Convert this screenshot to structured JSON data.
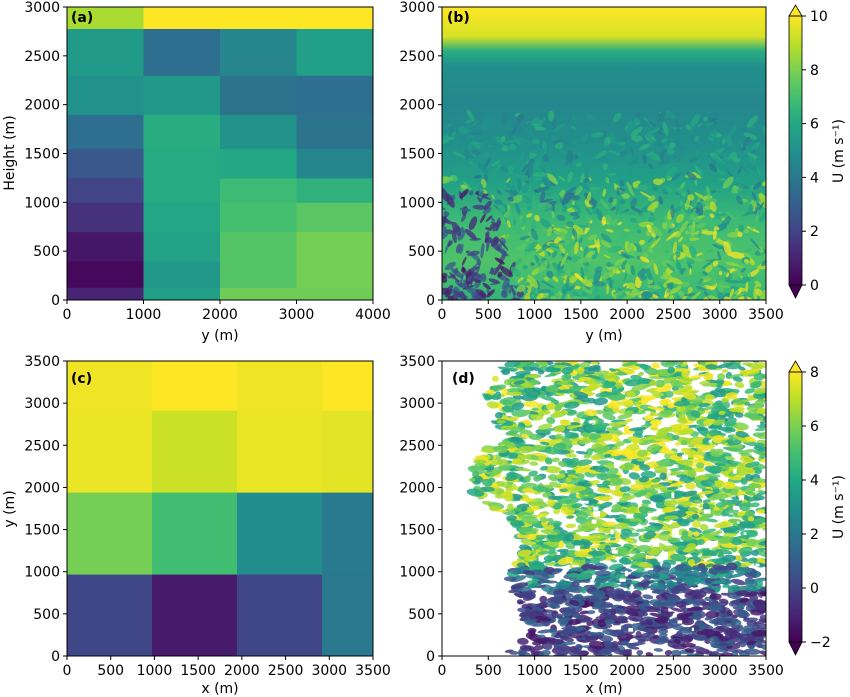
{
  "colors": {
    "viridis": [
      "#440154",
      "#482475",
      "#414487",
      "#355f8d",
      "#2a788e",
      "#21918c",
      "#22a884",
      "#44bf70",
      "#7ad151",
      "#bddf26",
      "#fde725"
    ]
  },
  "chart_data": [
    {
      "id": "a",
      "type": "heatmap",
      "panel_label": "(a)",
      "xlabel": "y (m)",
      "ylabel": "Height (m)",
      "xlim": [
        0,
        4000
      ],
      "ylim": [
        0,
        3000
      ],
      "xticks": [
        "0",
        "1000",
        "2000",
        "3000",
        "4000"
      ],
      "yticks": [
        "0",
        "500",
        "1000",
        "1500",
        "2000",
        "2500",
        "3000"
      ],
      "vmin": 0,
      "vmax": 10,
      "columns": [
        {
          "x0": 0,
          "x1": 1000,
          "cells": [
            {
              "z0": 0,
              "z1": 130,
              "v": 1.0
            },
            {
              "z0": 130,
              "z1": 400,
              "v": 0.2
            },
            {
              "z0": 400,
              "z1": 700,
              "v": 0.6
            },
            {
              "z0": 700,
              "z1": 1000,
              "v": 1.4
            },
            {
              "z0": 1000,
              "z1": 1250,
              "v": 2.0
            },
            {
              "z0": 1250,
              "z1": 1550,
              "v": 2.7
            },
            {
              "z0": 1550,
              "z1": 1900,
              "v": 3.6
            },
            {
              "z0": 1900,
              "z1": 2300,
              "v": 5.0
            },
            {
              "z0": 2300,
              "z1": 2780,
              "v": 5.4
            },
            {
              "z0": 2780,
              "z1": 3000,
              "v": 8.7
            }
          ]
        },
        {
          "x0": 1000,
          "x1": 2000,
          "cells": [
            {
              "z0": 0,
              "z1": 130,
              "v": 5.6
            },
            {
              "z0": 130,
              "z1": 400,
              "v": 5.3
            },
            {
              "z0": 400,
              "z1": 700,
              "v": 5.7
            },
            {
              "z0": 700,
              "z1": 1000,
              "v": 5.9
            },
            {
              "z0": 1000,
              "z1": 1550,
              "v": 6.1
            },
            {
              "z0": 1550,
              "z1": 1900,
              "v": 6.2
            },
            {
              "z0": 1900,
              "z1": 2300,
              "v": 5.3
            },
            {
              "z0": 2300,
              "z1": 2780,
              "v": 3.6
            },
            {
              "z0": 2780,
              "z1": 3000,
              "v": 10
            }
          ]
        },
        {
          "x0": 2000,
          "x1": 3000,
          "cells": [
            {
              "z0": 0,
              "z1": 130,
              "v": 7.8
            },
            {
              "z0": 130,
              "z1": 700,
              "v": 7.3
            },
            {
              "z0": 700,
              "z1": 1000,
              "v": 7.0
            },
            {
              "z0": 1000,
              "z1": 1250,
              "v": 6.8
            },
            {
              "z0": 1250,
              "z1": 1550,
              "v": 6.0
            },
            {
              "z0": 1550,
              "z1": 1900,
              "v": 5.1
            },
            {
              "z0": 1900,
              "z1": 2300,
              "v": 3.8
            },
            {
              "z0": 2300,
              "z1": 2780,
              "v": 4.5
            },
            {
              "z0": 2780,
              "z1": 3000,
              "v": 10
            }
          ]
        },
        {
          "x0": 3000,
          "x1": 4000,
          "cells": [
            {
              "z0": 0,
              "z1": 130,
              "v": 7.8
            },
            {
              "z0": 130,
              "z1": 700,
              "v": 7.9
            },
            {
              "z0": 700,
              "z1": 1000,
              "v": 7.4
            },
            {
              "z0": 1000,
              "z1": 1250,
              "v": 6.4
            },
            {
              "z0": 1250,
              "z1": 1550,
              "v": 4.6
            },
            {
              "z0": 1550,
              "z1": 1900,
              "v": 3.8
            },
            {
              "z0": 1900,
              "z1": 2300,
              "v": 3.6
            },
            {
              "z0": 2300,
              "z1": 2780,
              "v": 5.6
            },
            {
              "z0": 2780,
              "z1": 3000,
              "v": 10
            }
          ]
        }
      ]
    },
    {
      "id": "b",
      "type": "heatmap",
      "panel_label": "(b)",
      "xlabel": "y (m)",
      "ylabel": "",
      "xlim": [
        0,
        3600
      ],
      "ylim": [
        0,
        3000
      ],
      "xticks": [
        "0",
        "500",
        "1000",
        "1500",
        "2000",
        "2500",
        "3000",
        "3500"
      ],
      "yticks": [
        "0",
        "500",
        "1000",
        "1500",
        "2000",
        "2500",
        "3000"
      ],
      "vmin": 0,
      "vmax": 10,
      "vertical_profile": [
        {
          "z": 0,
          "v": 6.5
        },
        {
          "z": 400,
          "v": 7.2
        },
        {
          "z": 800,
          "v": 6.8
        },
        {
          "z": 1200,
          "v": 5.7
        },
        {
          "z": 1600,
          "v": 4.9
        },
        {
          "z": 2000,
          "v": 4.6
        },
        {
          "z": 2400,
          "v": 4.9
        },
        {
          "z": 2550,
          "v": 6.2
        },
        {
          "z": 2700,
          "v": 9.4
        },
        {
          "z": 3000,
          "v": 10
        }
      ],
      "colorbar": {
        "label": "U (m s⁻¹)",
        "ticks": [
          "0",
          "2",
          "4",
          "6",
          "8",
          "10"
        ],
        "min": 0,
        "max": 10
      }
    },
    {
      "id": "c",
      "type": "heatmap",
      "panel_label": "(c)",
      "xlabel": "x (m)",
      "ylabel": "y (m)",
      "xlim": [
        0,
        3600
      ],
      "ylim": [
        0,
        3600
      ],
      "xticks": [
        "0",
        "500",
        "1000",
        "1500",
        "2000",
        "2500",
        "3000",
        "3500"
      ],
      "yticks": [
        "0",
        "500",
        "1000",
        "1500",
        "2000",
        "2500",
        "3000",
        "3500"
      ],
      "vmin": -2,
      "vmax": 8,
      "xedges": [
        0,
        1000,
        2000,
        3000,
        3600
      ],
      "yedges": [
        0,
        1000,
        2000,
        3000,
        3600
      ],
      "rows": [
        [
          0.1,
          -1.3,
          0.1,
          2.0
        ],
        [
          5.9,
          4.9,
          2.8,
          2.1
        ],
        [
          7.7,
          7.2,
          7.7,
          7.6
        ],
        [
          7.8,
          8.0,
          7.8,
          8.0
        ]
      ]
    },
    {
      "id": "d",
      "type": "heatmap",
      "panel_label": "(d)",
      "xlabel": "x (m)",
      "ylabel": "",
      "xlim": [
        0,
        3600
      ],
      "ylim": [
        0,
        3600
      ],
      "xticks": [
        "0",
        "500",
        "1000",
        "1500",
        "2000",
        "2500",
        "3000",
        "3500"
      ],
      "yticks": [
        "0",
        "500",
        "1000",
        "1500",
        "2000",
        "2500",
        "3000",
        "3500"
      ],
      "vmin": -2,
      "vmax": 8,
      "colorbar": {
        "label": "U (m s⁻¹)",
        "ticks": [
          "−2",
          "0",
          "2",
          "4",
          "6",
          "8"
        ],
        "min": -2,
        "max": 8
      }
    }
  ]
}
